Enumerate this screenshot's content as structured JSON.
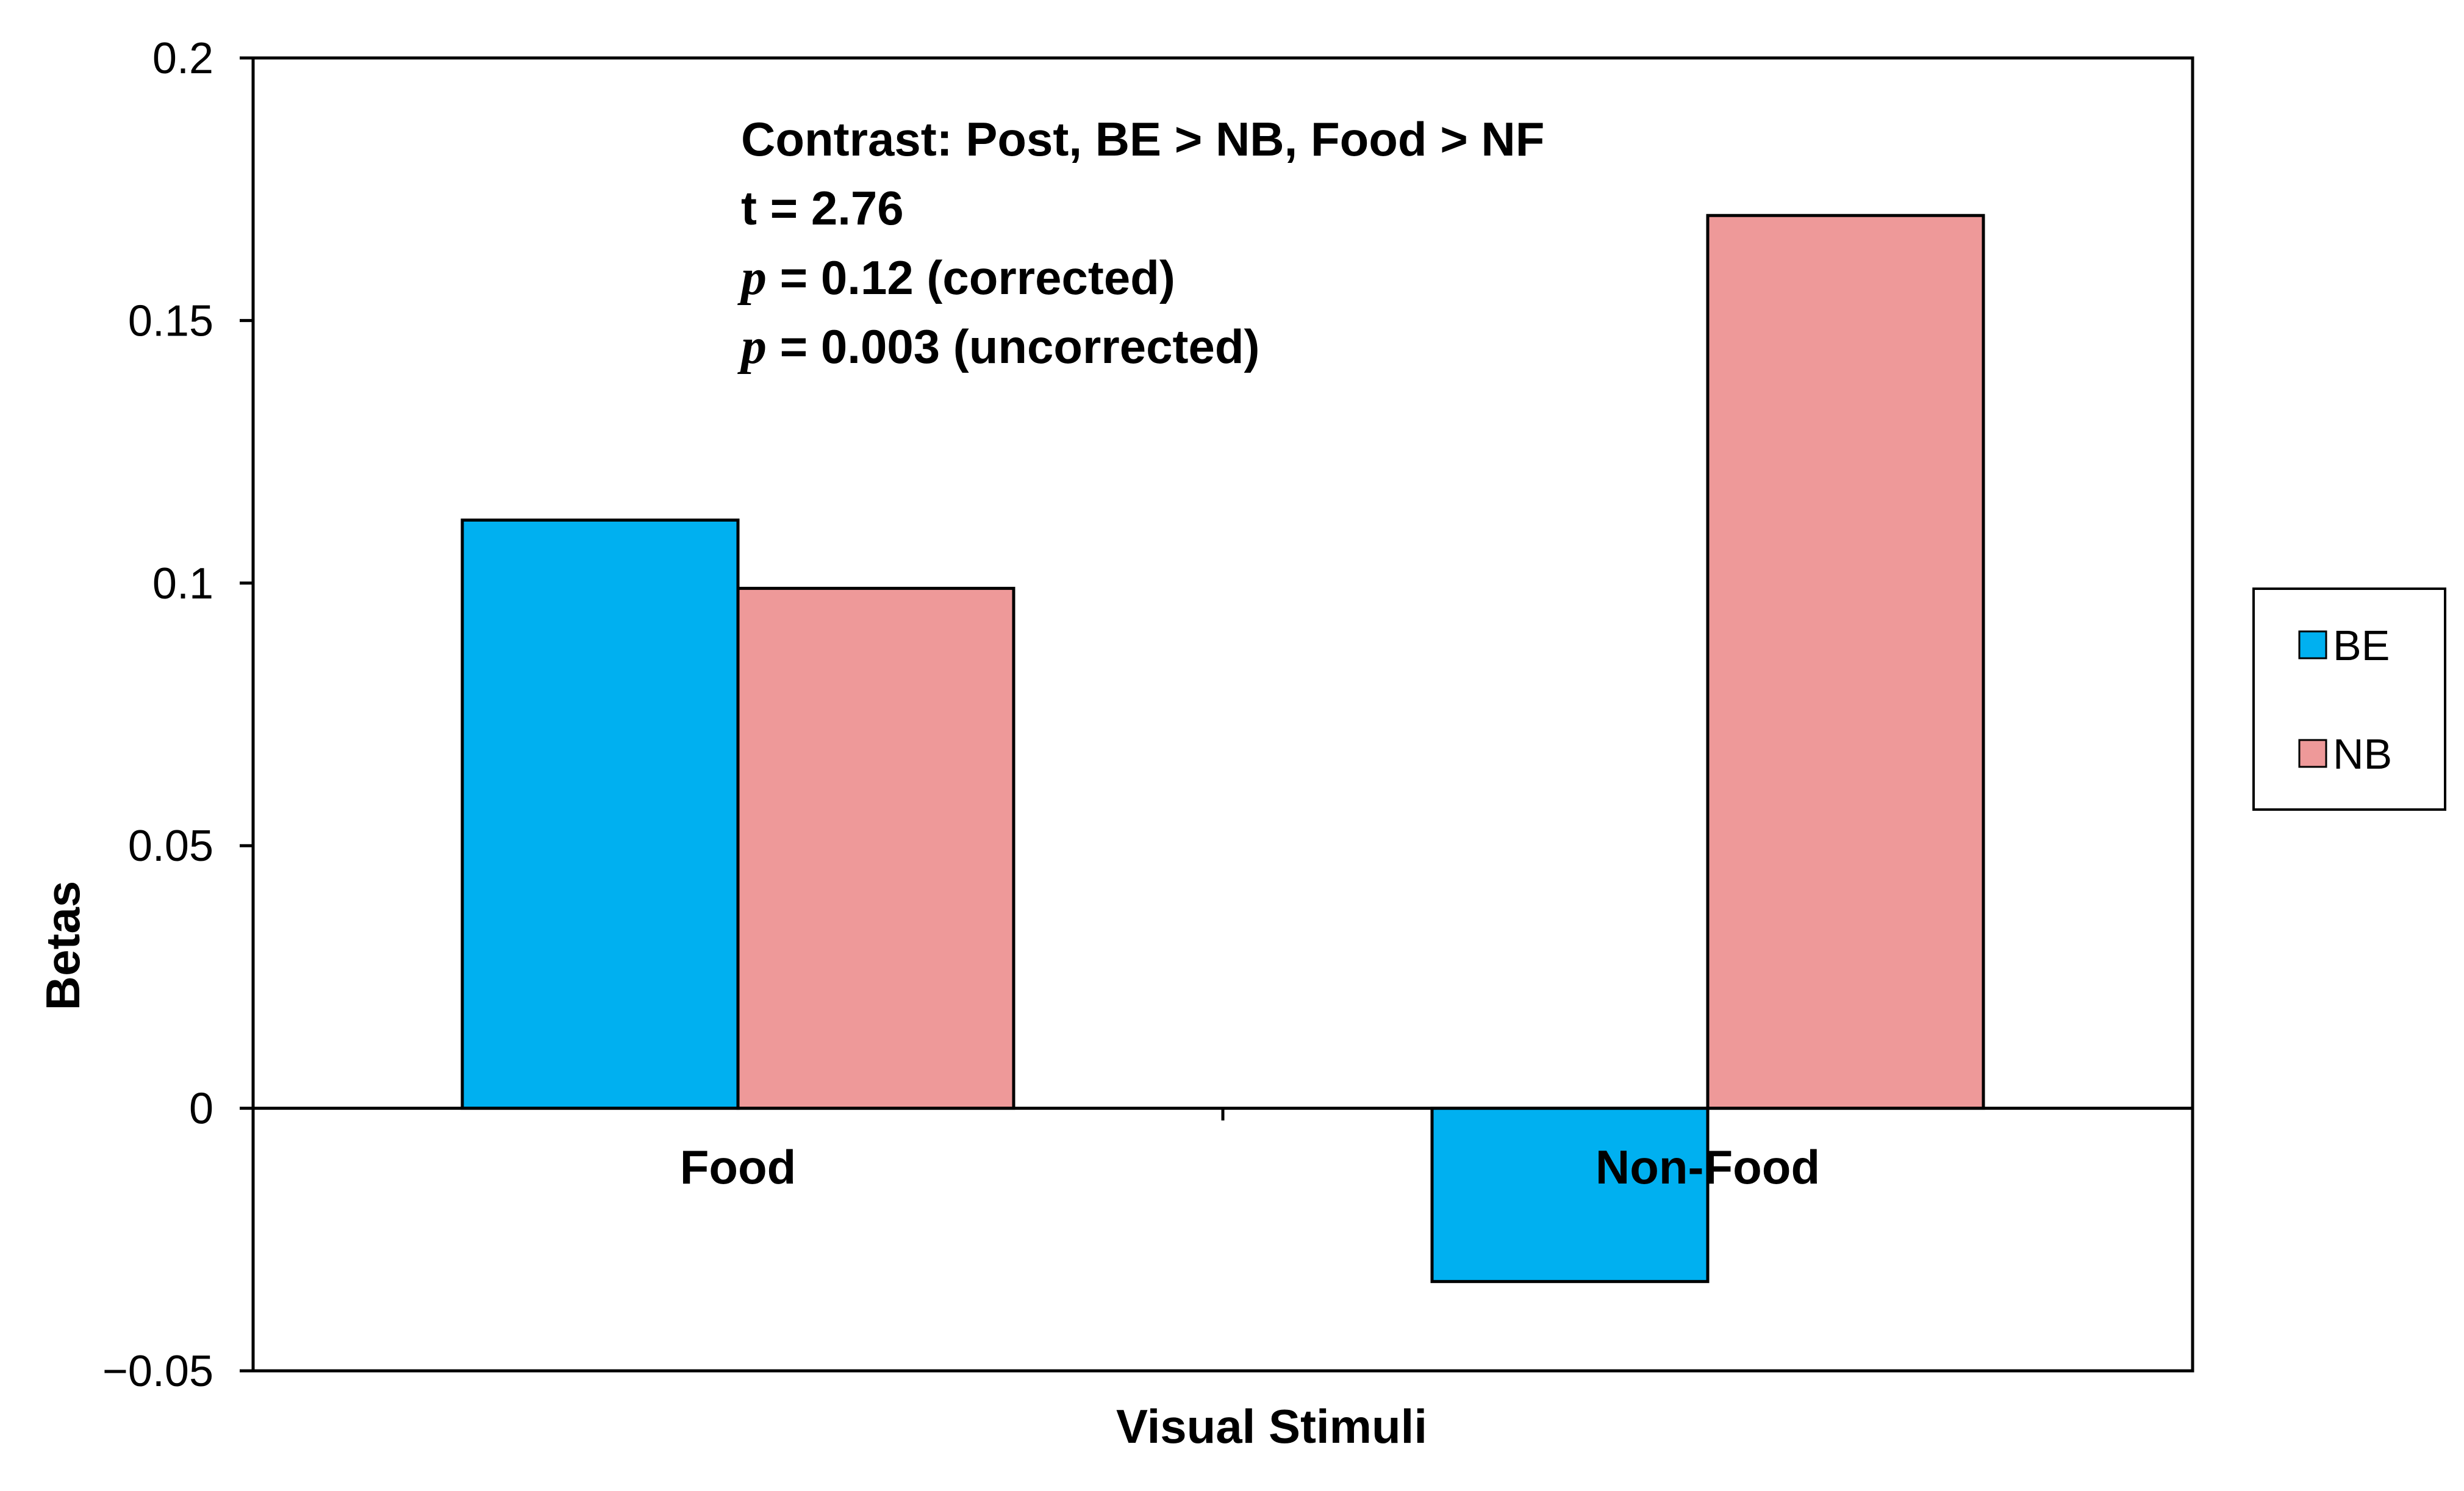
{
  "chart_data": {
    "type": "bar",
    "title": "",
    "xlabel": "Visual Stimuli",
    "ylabel": "Betas",
    "categories": [
      "Food",
      "Non-Food"
    ],
    "series": [
      {
        "name": "BE",
        "color": "#00b0f0",
        "values": [
          0.112,
          -0.033
        ]
      },
      {
        "name": "NB",
        "color": "#ee9999",
        "values": [
          0.099,
          0.17
        ]
      }
    ],
    "ylim": [
      -0.05,
      0.2
    ],
    "yticks": [
      "0.2",
      "0.15",
      "0.1",
      "0.05",
      "0",
      "−0.05"
    ],
    "ytick_values": [
      0.2,
      0.15,
      0.1,
      0.05,
      0,
      -0.05
    ],
    "grid": false,
    "legend_position": "right",
    "annotation": {
      "line1": "Contrast: Post, BE > NB, Food > NF",
      "line2": "t = 2.76",
      "p_symbol": "p",
      "line3_rest": " = 0.12 (corrected)",
      "line4_rest": " = 0.003 (uncorrected)"
    }
  }
}
